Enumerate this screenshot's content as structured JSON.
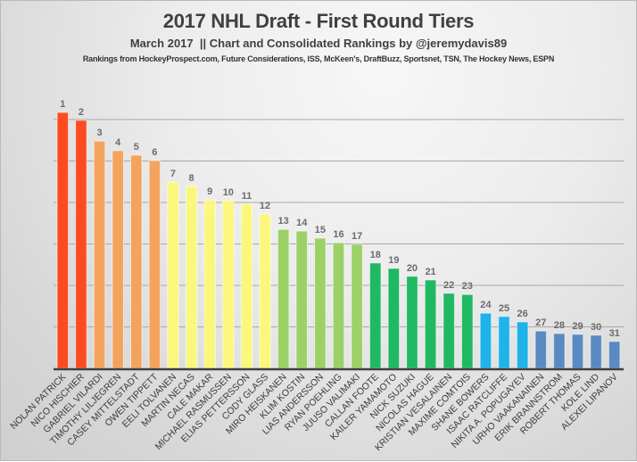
{
  "chart_data": {
    "type": "bar",
    "title": "2017 NHL Draft - First Round Tiers",
    "subtitle": "March 2017  || Chart and Consolidated Rankings by @jeremydavis89",
    "sources": "Rankings from HockeyProspect.com, Future Considerations, ISS, McKeen's, DraftBuzz, Sportsnet, TSN, The Hockey News, ESPN",
    "xlabel": "",
    "ylabel": "",
    "ylim": [
      0,
      6.3
    ],
    "grid": true,
    "gridlines": [
      1,
      2,
      3,
      4,
      5,
      6
    ],
    "legend": "none",
    "categories": [
      "NOLAN PATRICK",
      "NICO HISCHIER",
      "GABRIEL VILARDI",
      "TIMOTHY LILJEGREN",
      "CASEY MITTELSTADT",
      "OWEN TIPPETT",
      "EELI TOLVANEN",
      "MARTIN NECAS",
      "CALE MAKAR",
      "MICHAEL RASMUSSEN",
      "ELIAS PETTERSSON",
      "CODY GLASS",
      "MIRO HEISKANEN",
      "KLIM KOSTIN",
      "LIAS ANDERSSON",
      "RYAN POEHLING",
      "JUUSO VALIMAKI",
      "CALLAN FOOTE",
      "KAILER YAMAMOTO",
      "NICK SUZUKI",
      "NICOLAS HAGUE",
      "KRISTIAN VESALAINEN",
      "MAXIME COMTOIS",
      "SHANE BOWERS",
      "ISAAC RATCLIFFE",
      "NIKITA A. POPUGAYEV",
      "URHO VAAKANAINEN",
      "ERIK BRANNSTROM",
      "ROBERT THOMAS",
      "KOLE LIND",
      "ALEXEI LIPANOV"
    ],
    "data_labels": [
      "1",
      "2",
      "3",
      "4",
      "5",
      "6",
      "7",
      "8",
      "9",
      "10",
      "11",
      "12",
      "13",
      "14",
      "15",
      "16",
      "17",
      "18",
      "19",
      "20",
      "21",
      "22",
      "23",
      "24",
      "25",
      "26",
      "27",
      "28",
      "29",
      "30",
      "31"
    ],
    "values": [
      6.17,
      5.98,
      5.48,
      5.25,
      5.14,
      5.01,
      4.49,
      4.39,
      4.06,
      4.04,
      3.96,
      3.72,
      3.35,
      3.31,
      3.14,
      3.03,
      2.99,
      2.54,
      2.41,
      2.22,
      2.13,
      1.81,
      1.78,
      1.33,
      1.25,
      1.12,
      0.9,
      0.84,
      0.82,
      0.8,
      0.65
    ],
    "tiers": [
      1,
      1,
      2,
      2,
      2,
      2,
      3,
      3,
      3,
      3,
      3,
      3,
      4,
      4,
      4,
      4,
      4,
      5,
      5,
      5,
      5,
      5,
      5,
      6,
      6,
      6,
      7,
      7,
      7,
      7,
      7
    ],
    "tier_colors": {
      "1": "#FC4C1F",
      "2": "#F4A35F",
      "3": "#FBF77C",
      "4": "#9DD167",
      "5": "#21B864",
      "6": "#1FB3EA",
      "7": "#5B8AC3"
    },
    "gridline_color": "#a8a8a8",
    "axis_color": "#404040"
  }
}
